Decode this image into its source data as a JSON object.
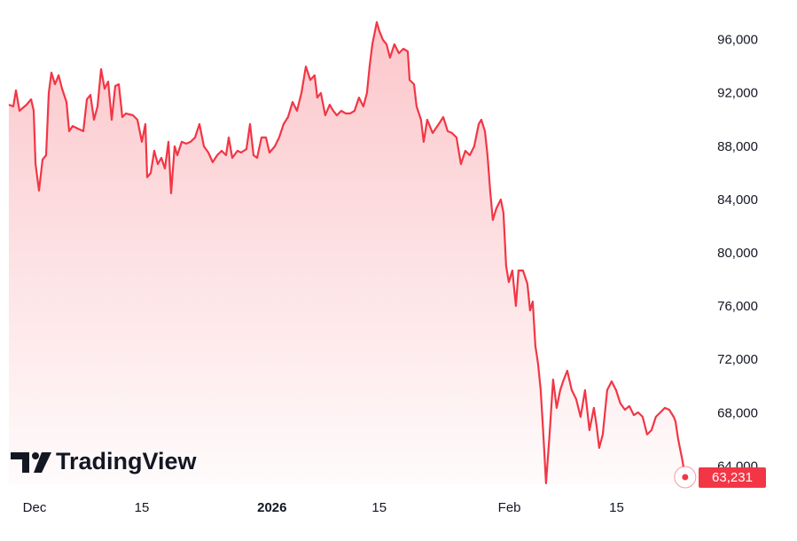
{
  "chart_data": {
    "type": "area",
    "watermark": "TradingView",
    "color": "#f23645",
    "x": [
      -3.36,
      -2.78,
      -2.43,
      -1.97,
      -1.04,
      -0.46,
      -0.12,
      0.12,
      0.58,
      1.04,
      1.5,
      1.85,
      2.2,
      2.66,
      3.13,
      3.59,
      4.17,
      4.51,
      4.98,
      5.67,
      6.37,
      6.83,
      7.29,
      7.75,
      8.22,
      8.68,
      9.14,
      9.61,
      10.07,
      10.53,
      11.0,
      11.46,
      11.92,
      12.85,
      13.43,
      14.0,
      14.47,
      14.7,
      15.16,
      15.63,
      16.09,
      16.55,
      17.01,
      17.48,
      17.82,
      18.29,
      18.63,
      19.21,
      19.79,
      20.37,
      20.95,
      21.53,
      22.11,
      22.69,
      23.26,
      23.84,
      24.42,
      25.0,
      25.35,
      25.81,
      26.5,
      26.97,
      27.66,
      28.13,
      28.59,
      29.05,
      29.63,
      30.21,
      30.67,
      31.37,
      31.94,
      32.52,
      33.1,
      33.68,
      34.26,
      34.84,
      35.42,
      36.0,
      36.57,
      36.92,
      37.38,
      37.96,
      38.54,
      39.0,
      39.47,
      40.05,
      40.63,
      41.2,
      41.78,
      42.36,
      42.94,
      43.4,
      43.75,
      44.1,
      44.68,
      45.02,
      45.49,
      45.95,
      46.41,
      46.99,
      47.57,
      48.15,
      48.73,
      48.96,
      49.54,
      49.88,
      50.46,
      50.81,
      51.27,
      51.97,
      52.78,
      53.36,
      53.94,
      54.51,
      55.09,
      55.67,
      56.25,
      56.83,
      57.41,
      57.99,
      58.33,
      58.8,
      59.14,
      59.49,
      59.84,
      60.3,
      60.88,
      61.23,
      61.57,
      61.92,
      62.38,
      62.85,
      63.19,
      63.77,
      64.35,
      64.7,
      65.05,
      65.39,
      65.74,
      66.09,
      66.44,
      66.78,
      67.25,
      67.71,
      68.17,
      68.63,
      69.1,
      69.56,
      70.14,
      70.72,
      71.3,
      71.88,
      72.45,
      73.03,
      73.38,
      73.73,
      74.19,
      74.77,
      75.35,
      75.93,
      76.5,
      77.08,
      77.66,
      78.24,
      78.82,
      79.4,
      79.98,
      80.56,
      81.13,
      81.71,
      82.29,
      82.87,
      83.45,
      83.68,
      84.03,
      84.38,
      84.61,
      84.95
    ],
    "values": [
      91180,
      91050,
      92250,
      90720,
      91180,
      91580,
      90720,
      86720,
      84730,
      87060,
      87390,
      92050,
      93580,
      92710,
      93380,
      92380,
      91380,
      89190,
      89580,
      89380,
      89190,
      91580,
      91910,
      90050,
      91050,
      93840,
      92380,
      92910,
      90050,
      92580,
      92710,
      90250,
      90520,
      90380,
      90050,
      88390,
      89720,
      85730,
      86060,
      87720,
      86720,
      87190,
      86390,
      88390,
      84530,
      88050,
      87390,
      88390,
      88250,
      88390,
      88720,
      89720,
      88050,
      87590,
      86860,
      87390,
      87720,
      87390,
      88720,
      87190,
      87720,
      87590,
      87850,
      89720,
      87390,
      87190,
      88720,
      88720,
      87590,
      88050,
      88720,
      89720,
      90250,
      91380,
      90720,
      92050,
      94040,
      93040,
      93380,
      91710,
      92050,
      90380,
      91180,
      90720,
      90380,
      90720,
      90520,
      90520,
      90720,
      91710,
      91050,
      92050,
      94040,
      95710,
      97370,
      96700,
      96040,
      95710,
      94710,
      95710,
      95040,
      95370,
      95170,
      93040,
      92710,
      91050,
      90050,
      88390,
      90050,
      89050,
      89720,
      90250,
      89190,
      89050,
      88720,
      86720,
      87720,
      87390,
      88050,
      89720,
      90050,
      89190,
      87390,
      84730,
      82530,
      83400,
      84060,
      83060,
      79070,
      77870,
      78740,
      76080,
      78740,
      78740,
      77740,
      75740,
      76410,
      73080,
      71750,
      69760,
      66430,
      62770,
      66430,
      70550,
      68430,
      69760,
      70550,
      71220,
      69760,
      69090,
      67760,
      69760,
      66760,
      68430,
      67090,
      65430,
      66430,
      69760,
      70420,
      69760,
      68760,
      68290,
      68560,
      67890,
      68090,
      67760,
      66430,
      66760,
      67760,
      68090,
      68430,
      68290,
      67760,
      67430,
      66100,
      65100,
      64430,
      63231
    ],
    "last_value": 63231,
    "last_value_label": "63,231",
    "xlim": [
      -3.36,
      85.2
    ],
    "ylim": [
      62700,
      98700
    ],
    "xticks": [
      {
        "value": 0,
        "label": "Dec"
      },
      {
        "value": 14,
        "label": "15"
      },
      {
        "value": 31,
        "label": "2026"
      },
      {
        "value": 45,
        "label": "15"
      },
      {
        "value": 62,
        "label": "Feb"
      },
      {
        "value": 76,
        "label": "15"
      }
    ],
    "yticks": [
      {
        "value": 64000,
        "label": "64,000"
      },
      {
        "value": 68000,
        "label": "68,000"
      },
      {
        "value": 72000,
        "label": "72,000"
      },
      {
        "value": 76000,
        "label": "76,000"
      },
      {
        "value": 80000,
        "label": "80,000"
      },
      {
        "value": 84000,
        "label": "84,000"
      },
      {
        "value": 88000,
        "label": "88,000"
      },
      {
        "value": 92000,
        "label": "92,000"
      },
      {
        "value": 96000,
        "label": "96,000"
      }
    ]
  }
}
